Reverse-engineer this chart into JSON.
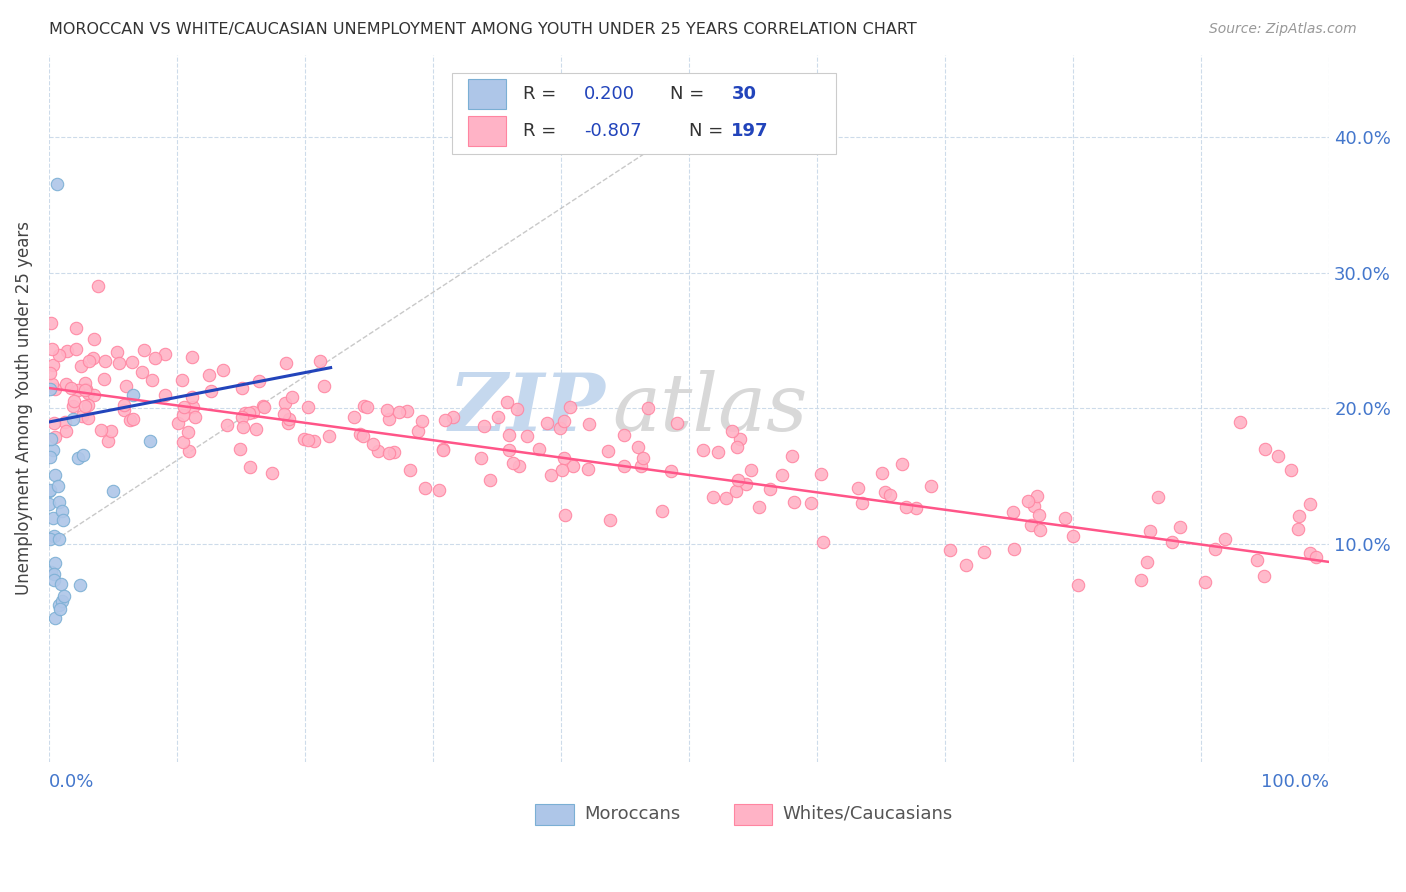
{
  "title": "MOROCCAN VS WHITE/CAUCASIAN UNEMPLOYMENT AMONG YOUTH UNDER 25 YEARS CORRELATION CHART",
  "source": "Source: ZipAtlas.com",
  "ylabel": "Unemployment Among Youth under 25 years",
  "ytick_labels": [
    "10.0%",
    "20.0%",
    "30.0%",
    "40.0%"
  ],
  "ytick_values": [
    0.1,
    0.2,
    0.3,
    0.4
  ],
  "xlim": [
    0.0,
    1.0
  ],
  "ylim": [
    -0.06,
    0.46
  ],
  "legend_r_moroccan": "0.200",
  "legend_n_moroccan": "30",
  "legend_r_white": "-0.807",
  "legend_n_white": "197",
  "moroccan_color": "#aec6e8",
  "moroccan_edge_color": "#7bafd4",
  "white_color": "#ffb3c6",
  "white_edge_color": "#ff85a1",
  "trend_moroccan_color": "#2244bb",
  "trend_white_color": "#ff5588",
  "watermark_zip_color": "#c5d8ee",
  "watermark_atlas_color": "#d8d8d8",
  "background_color": "#ffffff",
  "grid_color": "#c8d8e8",
  "title_color": "#333333",
  "source_color": "#999999",
  "axis_label_color": "#4477cc",
  "legend_text_color": "#333333",
  "legend_value_color": "#2244bb"
}
